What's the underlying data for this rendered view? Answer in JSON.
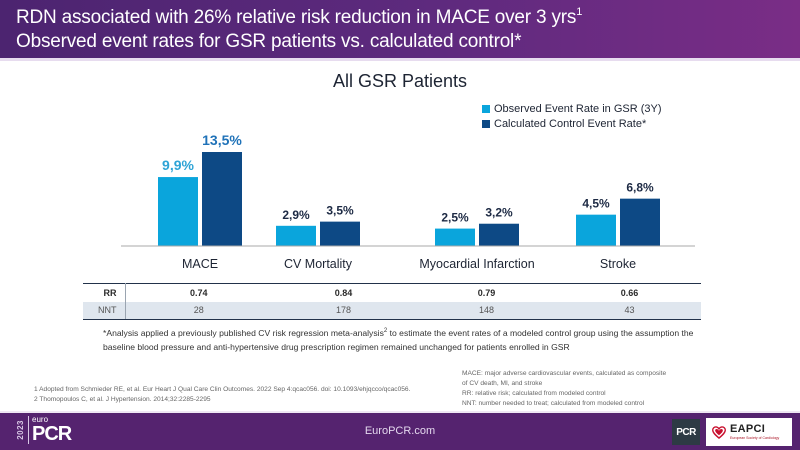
{
  "header": {
    "line1": "RDN associated with 26% relative risk reduction in MACE over 3 yrs",
    "line1_sup": "1",
    "line2": "Observed event rates for GSR patients vs. calculated control*"
  },
  "colors": {
    "header_purple": "#5e2a7e",
    "footer_purple": "#55236f",
    "observed": "#0aa5dc",
    "control": "#0d4985",
    "label_dark": "#1d2a44"
  },
  "chart_data": {
    "type": "bar",
    "title": "All GSR Patients",
    "xlabel": "",
    "ylabel": "",
    "ylim": [
      0,
      15
    ],
    "grid": false,
    "legend_position": "top-right",
    "categories": [
      "MACE",
      "CV Mortality",
      "Myocardial Infarction",
      "Stroke"
    ],
    "series": [
      {
        "name": "Observed Event Rate in GSR (3Y)",
        "values": [
          9.9,
          2.9,
          2.5,
          4.5
        ],
        "labels": [
          "9,9%",
          "2,9%",
          "2,5%",
          "4,5%"
        ]
      },
      {
        "name": "Calculated Control Event Rate*",
        "values": [
          13.5,
          3.5,
          3.2,
          6.8
        ],
        "labels": [
          "13,5%",
          "3,5%",
          "3,2%",
          "6,8%"
        ]
      }
    ]
  },
  "table": {
    "rows": [
      {
        "label": "RR",
        "values": [
          "0.74",
          "0.84",
          "0.79",
          "0.66"
        ]
      },
      {
        "label": "NNT",
        "values": [
          "28",
          "178",
          "148",
          "43"
        ]
      }
    ]
  },
  "footnote": {
    "before_sup": "*Analysis applied a previously published CV risk regression meta-analysis",
    "sup": "2",
    "after_sup": " to estimate the event rates of a modeled control group using the assumption the baseline blood pressure and anti-hypertensive drug prescription regimen remained unchanged for patients enrolled in GSR"
  },
  "references": [
    "1 Adopted from Schmieder RE, et al. Eur Heart J Qual Care Clin Outcomes. 2022 Sep 4:qcac056. doi: 10.1093/ehjqcco/qcac056.",
    "2 Thomopoulos C, et al. J Hypertension. 2014;32:2285-2295"
  ],
  "abbreviations": [
    "MACE: major adverse cardiovascular events, calculated as composite",
    "of CV death, MI, and stroke",
    "RR: relative risk; calculated from modeled control",
    "NNT: number needed to treat; calculated from modeled control"
  ],
  "footer": {
    "logo_year": "2023",
    "logo_euro": "euro",
    "logo_pcr": "PCR",
    "url": "EuroPCR.com",
    "pcr_badge": "PCR",
    "eapci_name": "EAPCI",
    "eapci_sub": "European Society of Cardiology"
  }
}
